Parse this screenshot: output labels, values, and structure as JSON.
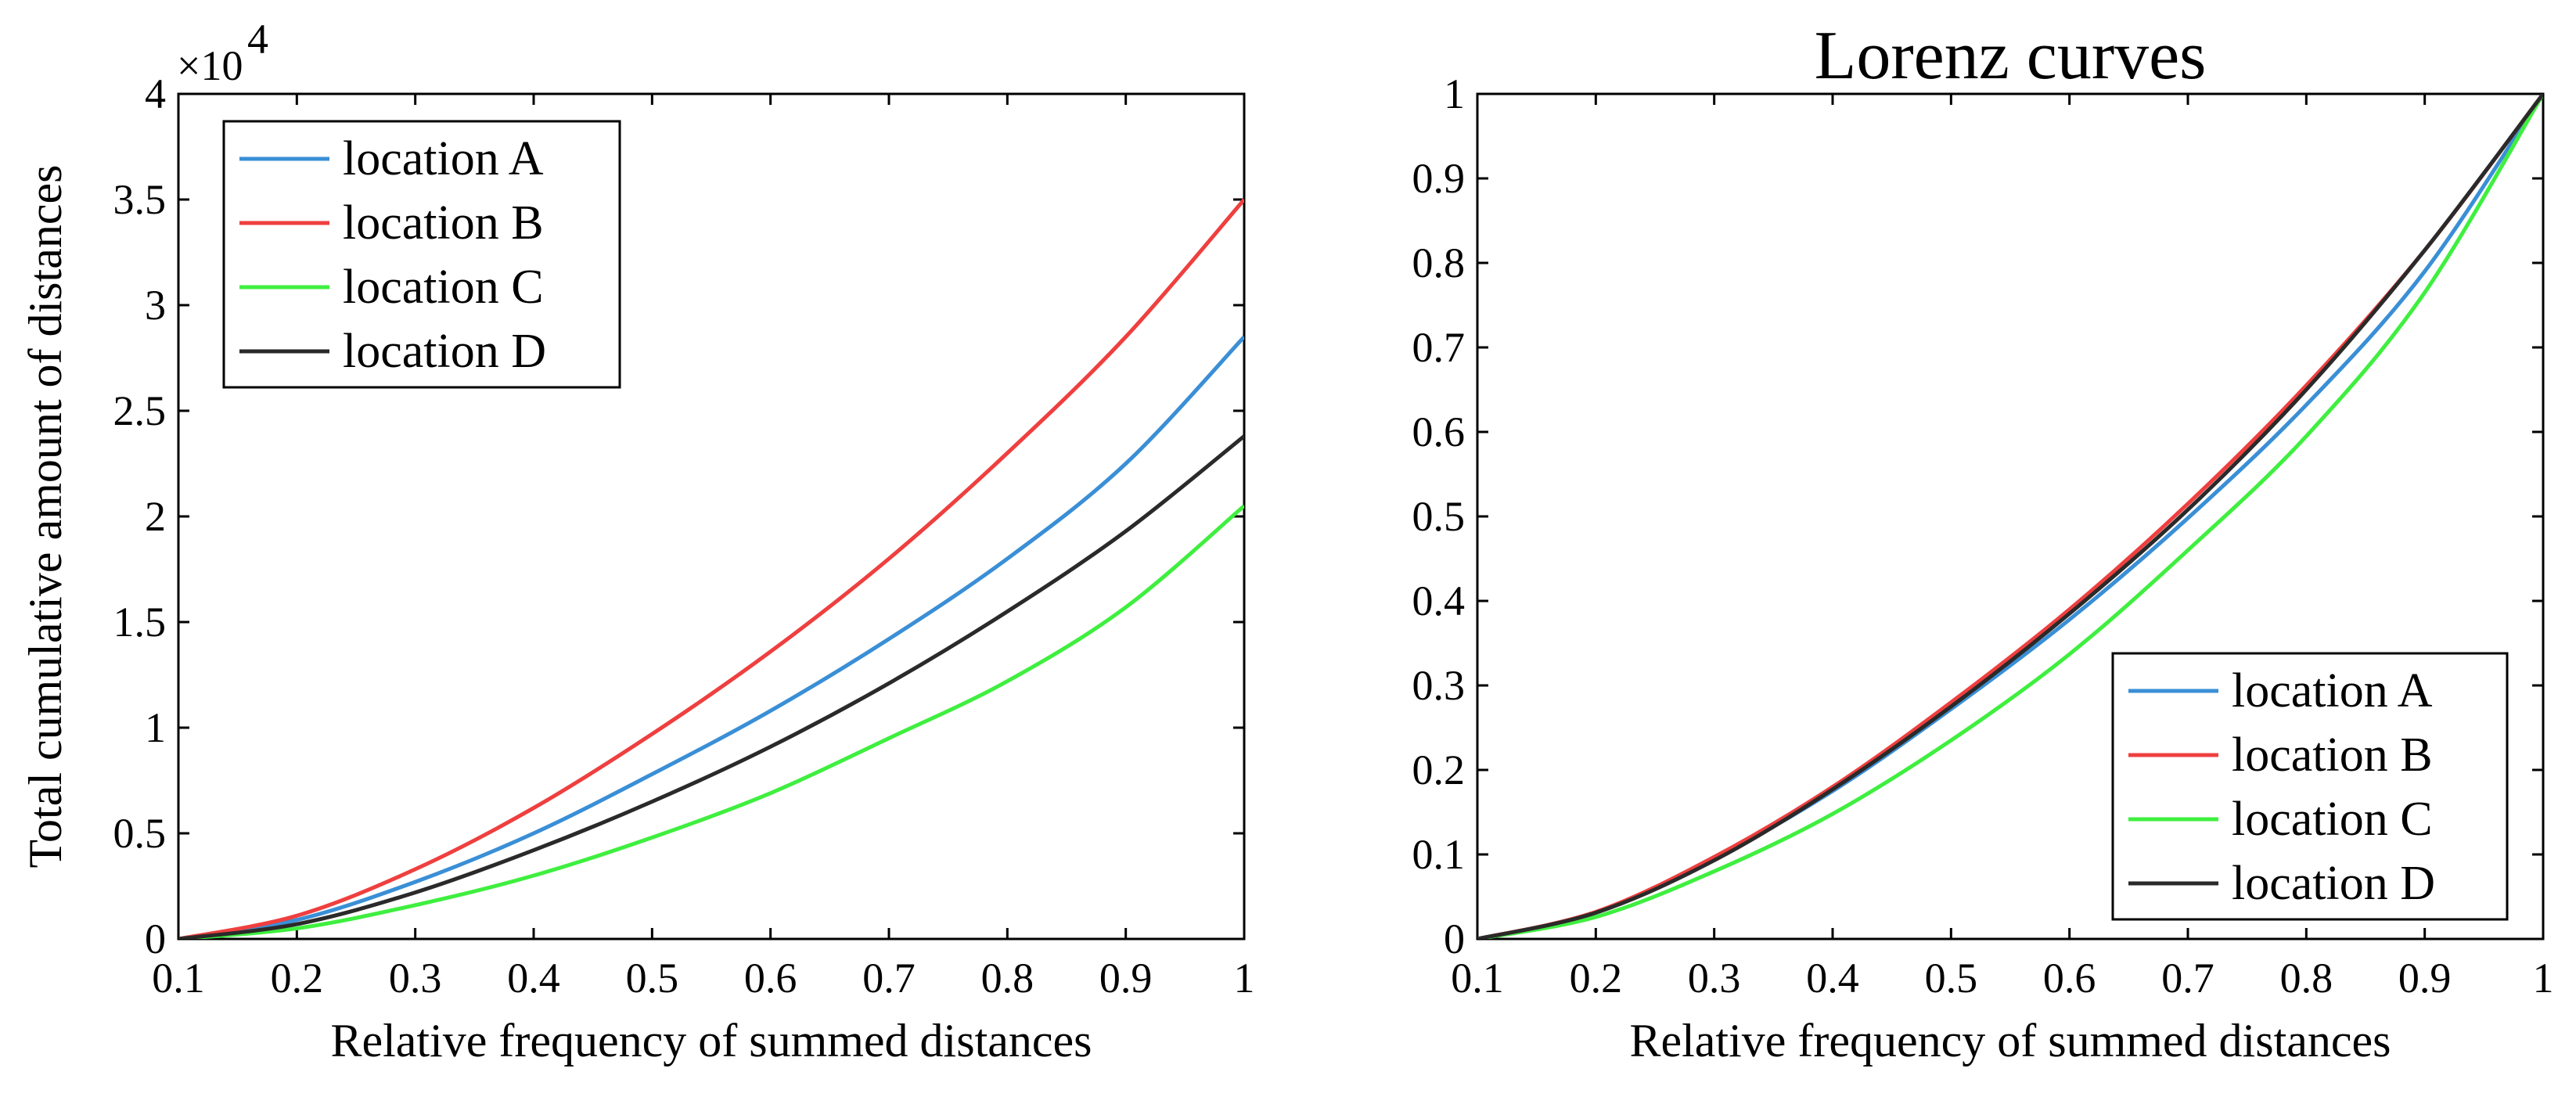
{
  "colors": {
    "location_a": "#3a8fd6",
    "location_b": "#ef3f3f",
    "location_c": "#3fef3f",
    "location_d": "#2a2a2a"
  },
  "chart_data": [
    {
      "type": "line",
      "title": "",
      "xlabel": "Relative frequency of summed distances",
      "ylabel": "Total cumulative amount of distances",
      "exponent_label": "×10",
      "exponent_power": "4",
      "xlim": [
        0.1,
        1
      ],
      "ylim": [
        0,
        4
      ],
      "xticks": [
        0.1,
        0.2,
        0.3,
        0.4,
        0.5,
        0.6,
        0.7,
        0.8,
        0.9,
        1
      ],
      "xtick_labels": [
        "0.1",
        "0.2",
        "0.3",
        "0.4",
        "0.5",
        "0.6",
        "0.7",
        "0.8",
        "0.9",
        "1"
      ],
      "yticks": [
        0,
        0.5,
        1,
        1.5,
        2,
        2.5,
        3,
        3.5,
        4
      ],
      "ytick_labels": [
        "0",
        "0.5",
        "1",
        "1.5",
        "2",
        "2.5",
        "3",
        "3.5",
        "4"
      ],
      "grid": false,
      "legend_position": "top-left",
      "x": [
        0.1,
        0.2,
        0.3,
        0.4,
        0.5,
        0.6,
        0.7,
        0.8,
        0.9,
        1.0
      ],
      "series": [
        {
          "name": "location A",
          "color_key": "location_a",
          "values": [
            0,
            0.09,
            0.27,
            0.5,
            0.78,
            1.08,
            1.42,
            1.8,
            2.25,
            2.85
          ]
        },
        {
          "name": "location B",
          "color_key": "location_b",
          "values": [
            0,
            0.11,
            0.33,
            0.62,
            0.97,
            1.36,
            1.8,
            2.3,
            2.85,
            3.5
          ]
        },
        {
          "name": "location C",
          "color_key": "location_c",
          "values": [
            0,
            0.05,
            0.16,
            0.3,
            0.48,
            0.69,
            0.95,
            1.22,
            1.57,
            2.05
          ]
        },
        {
          "name": "location D",
          "color_key": "location_d",
          "values": [
            0,
            0.07,
            0.22,
            0.42,
            0.65,
            0.91,
            1.21,
            1.55,
            1.93,
            2.38
          ]
        }
      ]
    },
    {
      "type": "line",
      "title": "Lorenz curves",
      "xlabel": "Relative frequency of summed distances",
      "ylabel": "",
      "xlim": [
        0.1,
        1
      ],
      "ylim": [
        0,
        1
      ],
      "xticks": [
        0.1,
        0.2,
        0.3,
        0.4,
        0.5,
        0.6,
        0.7,
        0.8,
        0.9,
        1
      ],
      "xtick_labels": [
        "0.1",
        "0.2",
        "0.3",
        "0.4",
        "0.5",
        "0.6",
        "0.7",
        "0.8",
        "0.9",
        "1"
      ],
      "yticks": [
        0,
        0.1,
        0.2,
        0.3,
        0.4,
        0.5,
        0.6,
        0.7,
        0.8,
        0.9,
        1
      ],
      "ytick_labels": [
        "0",
        "0.1",
        "0.2",
        "0.3",
        "0.4",
        "0.5",
        "0.6",
        "0.7",
        "0.8",
        "0.9",
        "1"
      ],
      "grid": false,
      "legend_position": "bottom-right",
      "x": [
        0.1,
        0.2,
        0.3,
        0.4,
        0.5,
        0.6,
        0.7,
        0.8,
        0.9,
        1.0
      ],
      "series": [
        {
          "name": "location A",
          "color_key": "location_a",
          "values": [
            0,
            0.031,
            0.095,
            0.175,
            0.272,
            0.378,
            0.498,
            0.632,
            0.79,
            1.0
          ]
        },
        {
          "name": "location B",
          "color_key": "location_b",
          "values": [
            0,
            0.032,
            0.097,
            0.18,
            0.28,
            0.39,
            0.515,
            0.655,
            0.815,
            1.0
          ]
        },
        {
          "name": "location C",
          "color_key": "location_c",
          "values": [
            0,
            0.026,
            0.08,
            0.148,
            0.235,
            0.337,
            0.46,
            0.595,
            0.765,
            1.0
          ]
        },
        {
          "name": "location D",
          "color_key": "location_d",
          "values": [
            0,
            0.031,
            0.093,
            0.177,
            0.275,
            0.385,
            0.508,
            0.65,
            0.815,
            1.0
          ]
        }
      ]
    }
  ]
}
